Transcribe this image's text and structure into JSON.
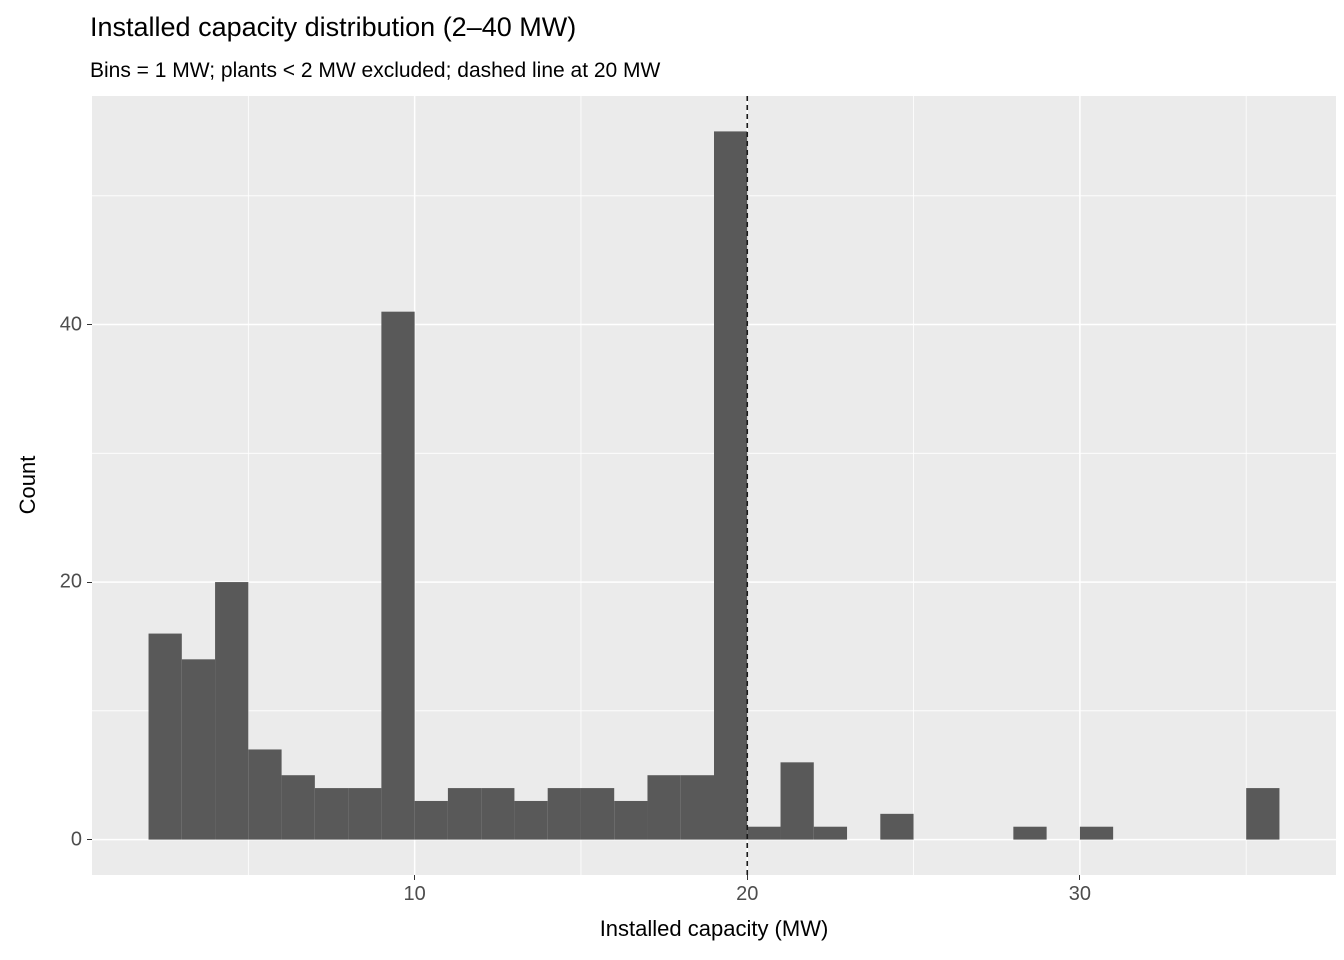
{
  "title": "Installed capacity distribution (2–40 MW)",
  "subtitle": "Bins = 1 MW; plants < 2 MW excluded; dashed line at 20 MW",
  "chart_data": {
    "type": "bar",
    "chart_kind": "histogram",
    "title": "Installed capacity distribution (2–40 MW)",
    "subtitle": "Bins = 1 MW; plants < 2 MW excluded; dashed line at 20 MW",
    "xlabel": "Installed capacity (MW)",
    "ylabel": "Count",
    "bin_width": 1,
    "bins": [
      {
        "start": 2,
        "count": 16
      },
      {
        "start": 3,
        "count": 14
      },
      {
        "start": 4,
        "count": 20
      },
      {
        "start": 5,
        "count": 7
      },
      {
        "start": 6,
        "count": 5
      },
      {
        "start": 7,
        "count": 4
      },
      {
        "start": 8,
        "count": 4
      },
      {
        "start": 9,
        "count": 41
      },
      {
        "start": 10,
        "count": 3
      },
      {
        "start": 11,
        "count": 4
      },
      {
        "start": 12,
        "count": 4
      },
      {
        "start": 13,
        "count": 3
      },
      {
        "start": 14,
        "count": 4
      },
      {
        "start": 15,
        "count": 4
      },
      {
        "start": 16,
        "count": 3
      },
      {
        "start": 17,
        "count": 5
      },
      {
        "start": 18,
        "count": 5
      },
      {
        "start": 19,
        "count": 55
      },
      {
        "start": 20,
        "count": 1
      },
      {
        "start": 21,
        "count": 6
      },
      {
        "start": 22,
        "count": 1
      },
      {
        "start": 23,
        "count": 0
      },
      {
        "start": 24,
        "count": 2
      },
      {
        "start": 25,
        "count": 0
      },
      {
        "start": 26,
        "count": 0
      },
      {
        "start": 27,
        "count": 0
      },
      {
        "start": 28,
        "count": 1
      },
      {
        "start": 29,
        "count": 0
      },
      {
        "start": 30,
        "count": 1
      },
      {
        "start": 31,
        "count": 0
      },
      {
        "start": 32,
        "count": 0
      },
      {
        "start": 33,
        "count": 0
      },
      {
        "start": 34,
        "count": 0
      },
      {
        "start": 35,
        "count": 4
      }
    ],
    "x_ticks": [
      10,
      20,
      30
    ],
    "x_minor_ticks": [
      5,
      15,
      25,
      35
    ],
    "y_ticks": [
      0,
      20,
      40
    ],
    "y_minor_ticks": [
      10,
      30,
      50
    ],
    "xlim": [
      0.3,
      37.7
    ],
    "ylim": [
      -2.75,
      57.75
    ],
    "vline": {
      "x": 20,
      "style": "dashed"
    },
    "grid": true,
    "legend": "none",
    "colors": {
      "bar": "#595959",
      "panel_bg": "#EBEBEB",
      "grid": "#FFFFFF",
      "vline": "#1a1a1a",
      "tick": "#333333",
      "tick_label": "#4D4D4D",
      "text": "#000000"
    }
  }
}
